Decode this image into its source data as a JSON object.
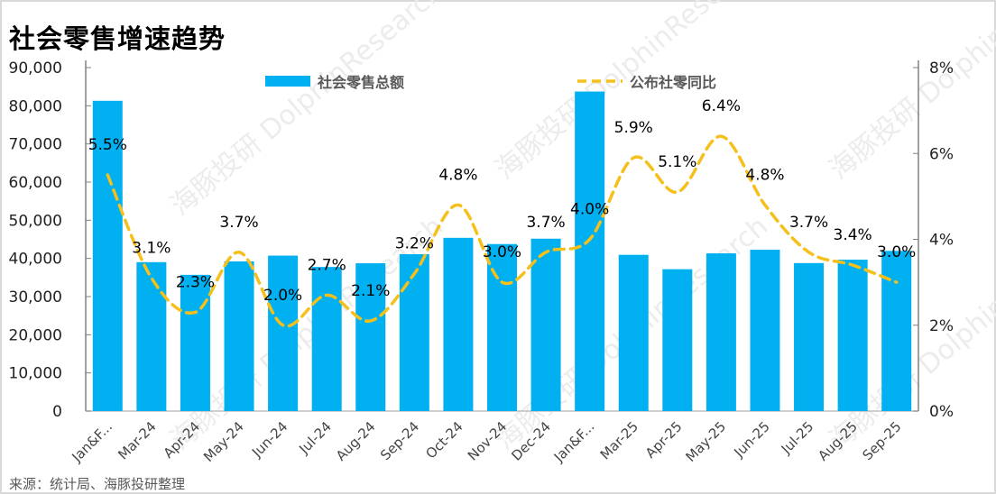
{
  "title": "社会零售增速趋势",
  "source": "来源：统计局、海豚投研整理",
  "watermark": "海豚投研 DolphinResearch",
  "colors": {
    "bar": "#00B0F0",
    "line": "#F5C01C"
  },
  "chart_data": {
    "type": "bar+line",
    "categories": [
      "Jan&F...",
      "Mar-24",
      "Apr-24",
      "May-24",
      "Jun-24",
      "Jul-24",
      "Aug-24",
      "Sep-24",
      "Oct-24",
      "Nov-24",
      "Dec-24",
      "Jan&F...",
      "Mar-25",
      "Apr-25",
      "May-25",
      "Jun-25",
      "Jul-25",
      "Aug-25",
      "Sep-25"
    ],
    "series": [
      {
        "name": "社会零售总额",
        "type": "bar",
        "axis": "left",
        "values": [
          81307,
          39020,
          35699,
          39211,
          40732,
          37757,
          38726,
          41112,
          45396,
          43763,
          45172,
          83731,
          40940,
          37174,
          41326,
          42287,
          38780,
          39668,
          41971
        ]
      },
      {
        "name": "公布社零同比",
        "type": "line",
        "axis": "right",
        "style": "dashed-smooth",
        "values": [
          5.5,
          3.1,
          2.3,
          3.7,
          2.0,
          2.7,
          2.1,
          3.2,
          4.8,
          3.0,
          3.7,
          4.0,
          5.9,
          5.1,
          6.4,
          4.8,
          3.7,
          3.4,
          3.0
        ],
        "labels": [
          "5.5%",
          "3.1%",
          "2.3%",
          "3.7%",
          "2.0%",
          "2.7%",
          "2.1%",
          "3.2%",
          "4.8%",
          "3.0%",
          "3.7%",
          "4.0%",
          "5.9%",
          "5.1%",
          "6.4%",
          "4.8%",
          "3.7%",
          "3.4%",
          "3.0%"
        ]
      }
    ],
    "y_left": {
      "range": [
        0,
        90000
      ],
      "ticks": [
        "0",
        "10,000",
        "20,000",
        "30,000",
        "40,000",
        "50,000",
        "60,000",
        "70,000",
        "80,000",
        "90,000"
      ]
    },
    "y_right": {
      "range": [
        0,
        8
      ],
      "ticks": [
        "0%",
        "2%",
        "4%",
        "6%",
        "8%"
      ]
    },
    "grid": false,
    "legend": "top-center"
  }
}
